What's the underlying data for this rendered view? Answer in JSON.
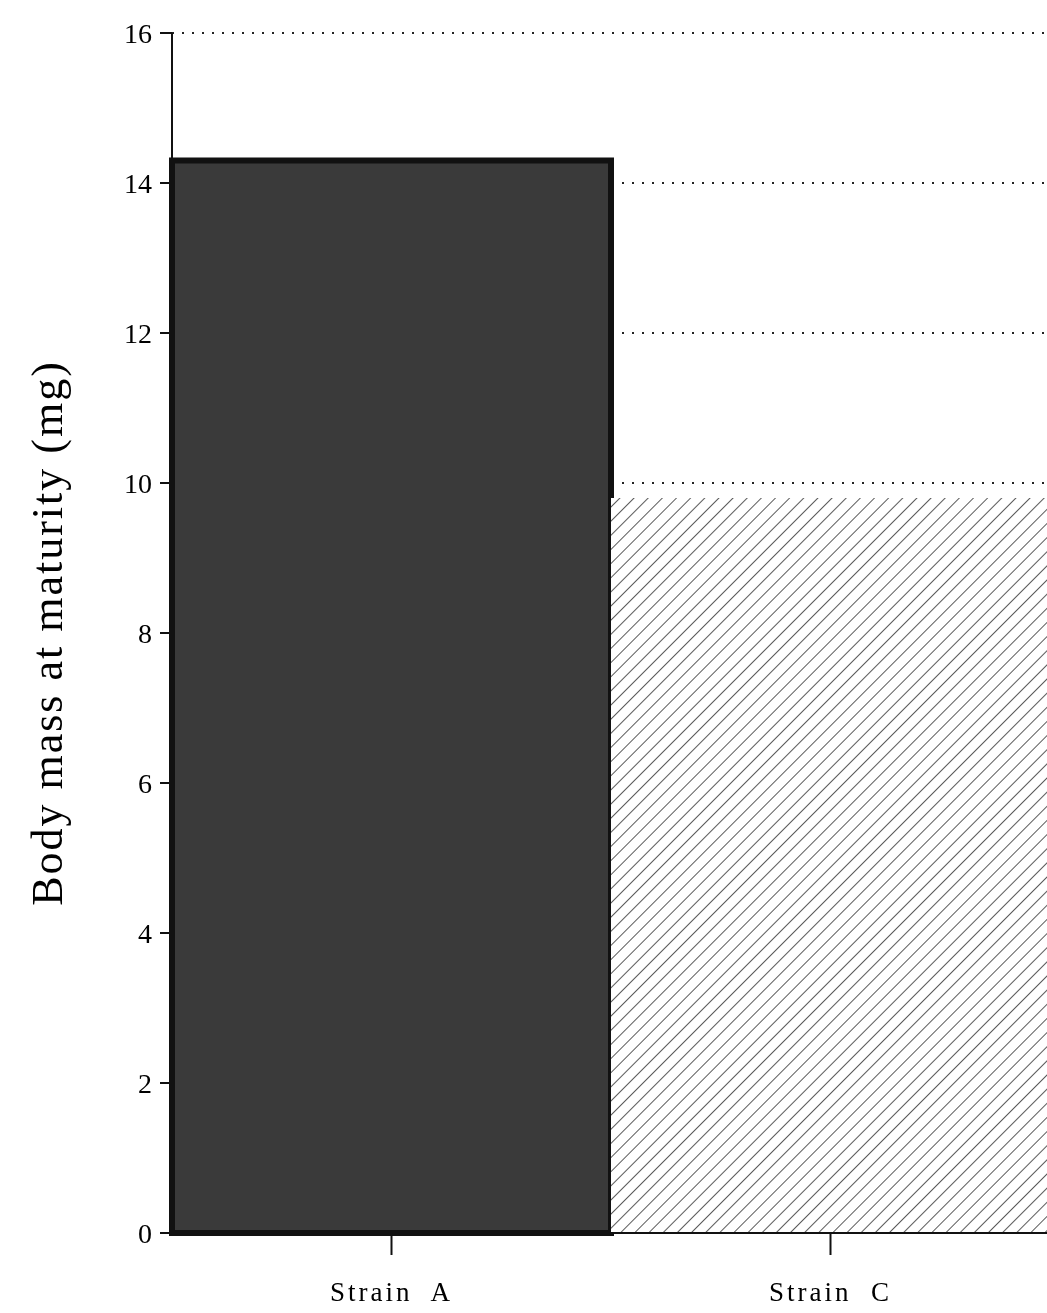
{
  "chart_data": {
    "type": "bar",
    "ylabel": "Body mass at maturity (mg)",
    "categories": [
      "Strain  A",
      "Strain  C"
    ],
    "values": [
      14.3,
      9.8
    ],
    "colors": [
      "#3a3a3a",
      "#ffffff"
    ],
    "ylim": [
      0,
      16
    ],
    "yticks": [
      0,
      2,
      4,
      6,
      8,
      10,
      12,
      14,
      16
    ],
    "grid": "y"
  }
}
